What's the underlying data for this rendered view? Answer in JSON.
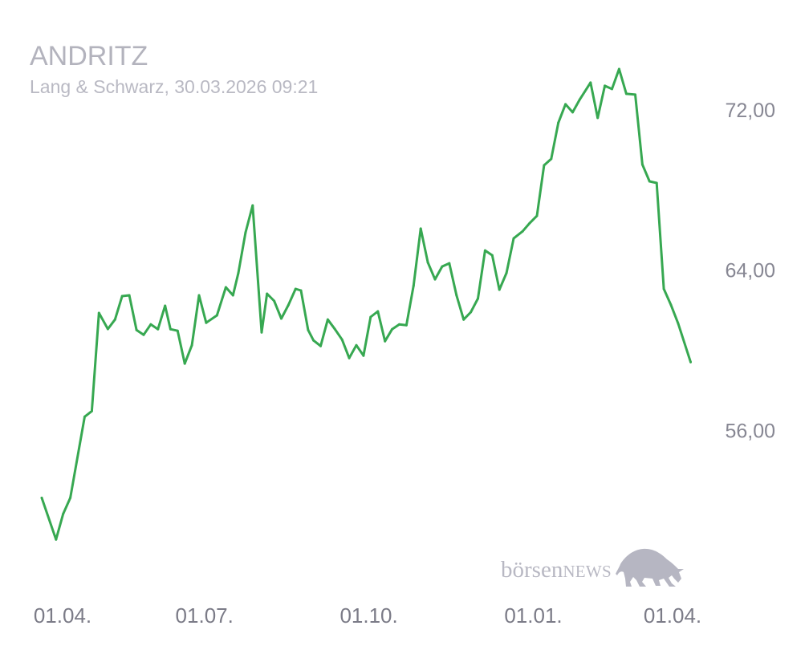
{
  "chart_data": {
    "type": "line",
    "title": "ANDRITZ",
    "subtitle": "Lang & Schwarz, 30.03.2026 09:21",
    "x_scale": "date",
    "xlim": [
      "2025-04-01",
      "2026-04-01"
    ],
    "ylim": [
      49,
      75
    ],
    "xticks": [
      {
        "date": "2025-04-01",
        "label": "01.04."
      },
      {
        "date": "2025-07-01",
        "label": "01.07."
      },
      {
        "date": "2025-10-01",
        "label": "01.10."
      },
      {
        "date": "2026-01-01",
        "label": "01.01."
      },
      {
        "date": "2026-04-01",
        "label": "01.04."
      }
    ],
    "yticks": [
      {
        "value": 72,
        "label": "72,00"
      },
      {
        "value": 64,
        "label": "64,00"
      },
      {
        "value": 56,
        "label": "56,00"
      }
    ],
    "y_axis_position": "right",
    "grid": false,
    "legend": "none",
    "series": [
      {
        "color": "#37a851",
        "x": [
          "2025-04-01",
          "2025-04-09",
          "2025-04-13",
          "2025-04-17",
          "2025-04-25",
          "2025-04-29",
          "2025-05-03",
          "2025-05-08",
          "2025-05-12",
          "2025-05-16",
          "2025-05-20",
          "2025-05-24",
          "2025-05-28",
          "2025-06-01",
          "2025-06-05",
          "2025-06-09",
          "2025-06-12",
          "2025-06-16",
          "2025-06-20",
          "2025-06-24",
          "2025-06-28",
          "2025-07-02",
          "2025-07-08",
          "2025-07-13",
          "2025-07-17",
          "2025-07-20",
          "2025-07-24",
          "2025-07-28",
          "2025-08-02",
          "2025-08-05",
          "2025-08-09",
          "2025-08-13",
          "2025-08-17",
          "2025-08-21",
          "2025-08-24",
          "2025-08-28",
          "2025-08-31",
          "2025-09-04",
          "2025-09-08",
          "2025-09-12",
          "2025-09-16",
          "2025-09-20",
          "2025-09-24",
          "2025-09-28",
          "2025-10-02",
          "2025-10-06",
          "2025-10-10",
          "2025-10-14",
          "2025-10-18",
          "2025-10-22",
          "2025-10-26",
          "2025-10-30",
          "2025-11-03",
          "2025-11-07",
          "2025-11-11",
          "2025-11-15",
          "2025-11-19",
          "2025-11-23",
          "2025-11-27",
          "2025-12-01",
          "2025-12-05",
          "2025-12-09",
          "2025-12-13",
          "2025-12-17",
          "2025-12-21",
          "2025-12-26",
          "2025-12-30",
          "2026-01-03",
          "2026-01-07",
          "2026-01-11",
          "2026-01-15",
          "2026-01-19",
          "2026-01-23",
          "2026-01-27",
          "2026-02-02",
          "2026-02-06",
          "2026-02-10",
          "2026-02-14",
          "2026-02-18",
          "2026-02-22",
          "2026-02-27",
          "2026-03-03",
          "2026-03-07",
          "2026-03-11",
          "2026-03-15",
          "2026-03-19",
          "2026-03-23",
          "2026-03-30"
        ],
        "y": [
          52.67,
          50.59,
          51.87,
          52.67,
          56.72,
          57.0,
          61.9,
          61.1,
          61.57,
          62.74,
          62.78,
          61.05,
          60.81,
          61.33,
          61.09,
          62.26,
          61.09,
          61.01,
          59.37,
          60.29,
          62.78,
          61.41,
          61.78,
          63.18,
          62.78,
          63.9,
          65.91,
          67.27,
          60.93,
          62.86,
          62.5,
          61.62,
          62.3,
          63.1,
          63.02,
          61.05,
          60.53,
          60.25,
          61.57,
          61.09,
          60.57,
          59.65,
          60.29,
          59.77,
          61.7,
          61.98,
          60.49,
          61.09,
          61.33,
          61.29,
          63.26,
          66.11,
          64.42,
          63.58,
          64.22,
          64.38,
          62.78,
          61.57,
          61.94,
          62.62,
          65.02,
          64.78,
          63.06,
          63.9,
          65.62,
          65.98,
          66.39,
          66.75,
          69.27,
          69.59,
          71.4,
          72.32,
          71.92,
          72.56,
          73.4,
          71.64,
          73.24,
          73.08,
          74.08,
          72.84,
          72.8,
          69.31,
          68.47,
          68.39,
          63.1,
          62.3,
          61.37,
          59.45
        ]
      }
    ]
  },
  "watermark": {
    "text_lower": "börsen",
    "text_caps": "NEWS",
    "icon": "bull-icon"
  }
}
